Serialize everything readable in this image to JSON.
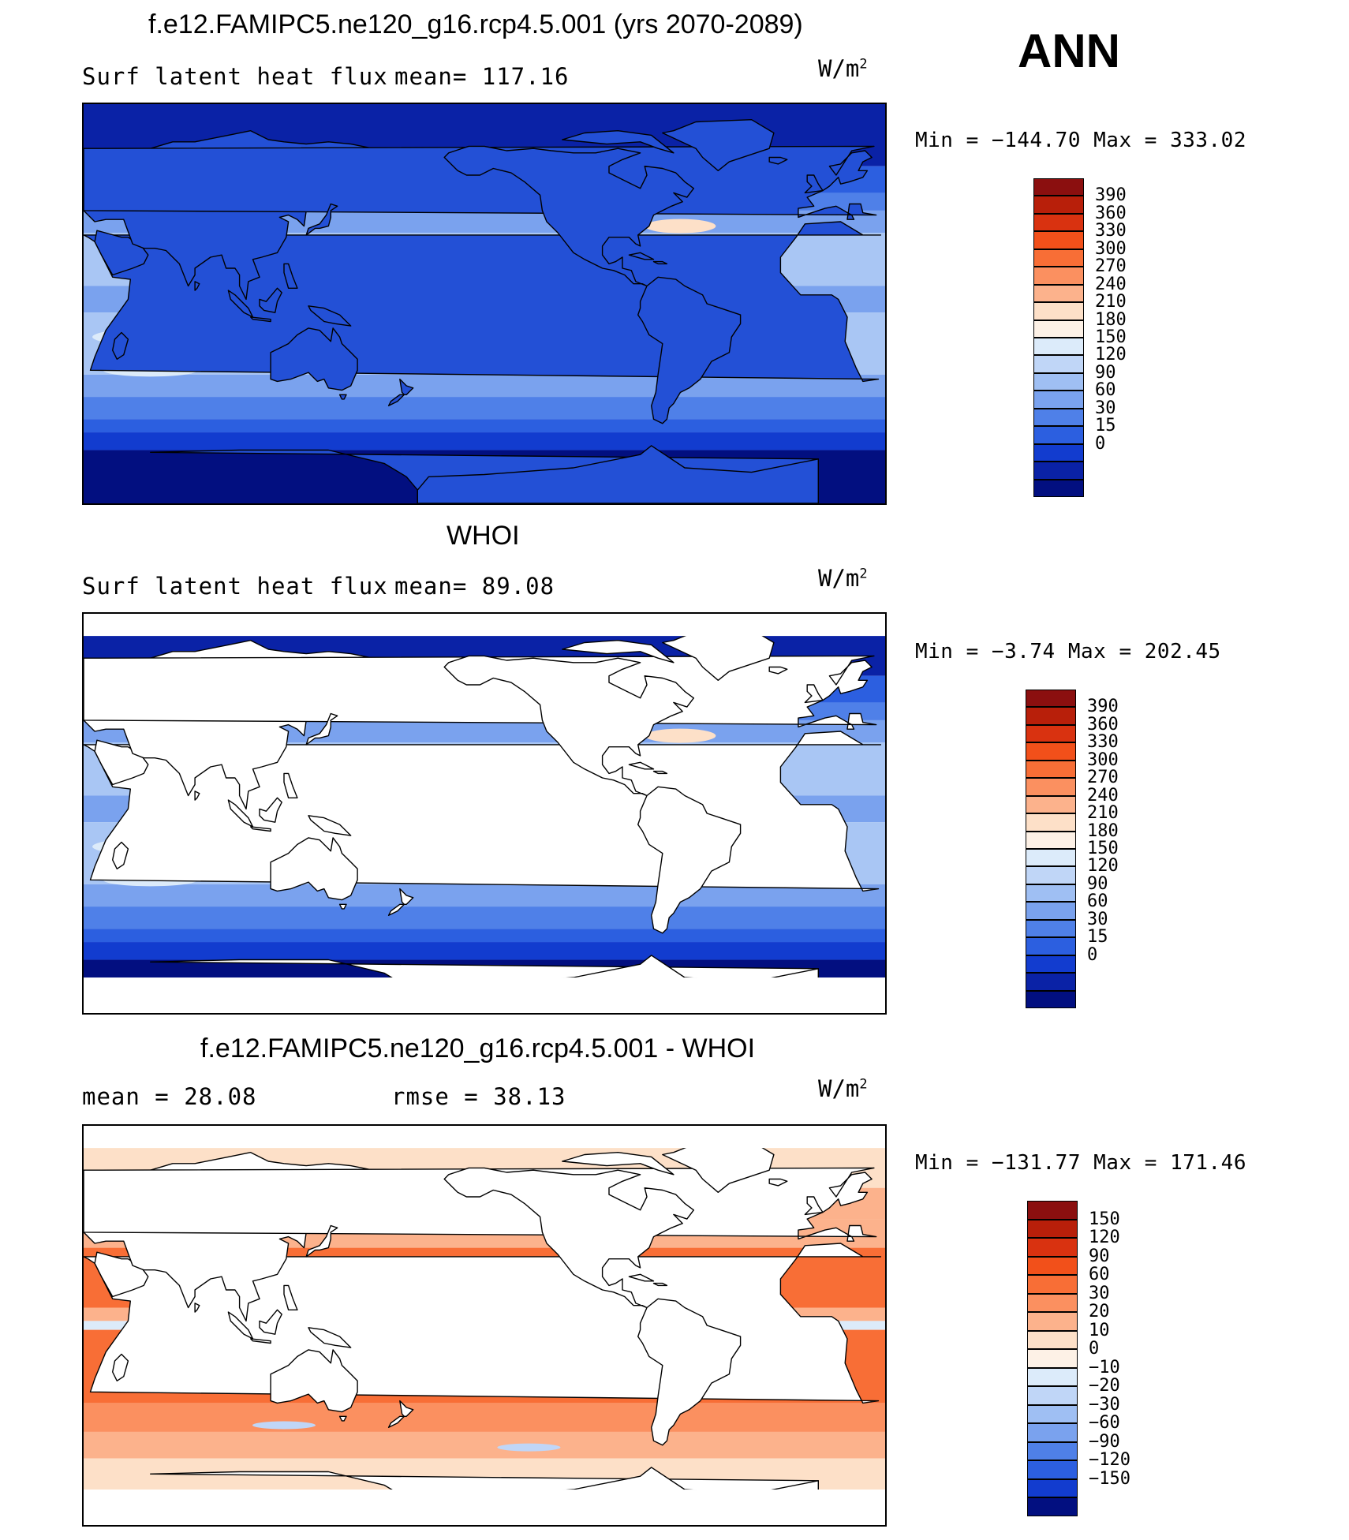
{
  "figure": {
    "season": "ANN"
  },
  "panels": [
    {
      "title": "f.e12.FAMIPC5.ne120_g16.rcp4.5.001 (yrs 2070-2089)",
      "left_label": "Surf latent heat flux",
      "mid_label": "mean=  117.16",
      "unit": "W/m",
      "unit_sup": "2",
      "minmax": "Min = −144.70 Max = 333.02",
      "mask_land": false,
      "palette": "abs"
    },
    {
      "title": "WHOI",
      "left_label": "Surf latent heat flux",
      "mid_label": "mean=   89.08",
      "unit": "W/m",
      "unit_sup": "2",
      "minmax": "Min =   −3.74 Max = 202.45",
      "mask_land": true,
      "palette": "abs"
    },
    {
      "title": "f.e12.FAMIPC5.ne120_g16.rcp4.5.001 - WHOI",
      "left_label": "mean =   28.08",
      "mid_label": "rmse =   38.13",
      "unit": "W/m",
      "unit_sup": "2",
      "minmax": "Min = −131.77 Max = 171.46",
      "mask_land": true,
      "palette": "diff"
    }
  ],
  "colorbars": {
    "abs": {
      "labels": [
        "390",
        "360",
        "330",
        "300",
        "270",
        "240",
        "210",
        "180",
        "150",
        "120",
        "90",
        "60",
        "30",
        "15",
        "0"
      ],
      "colors": [
        "#8b0f0f",
        "#b81f0a",
        "#d93210",
        "#f2501a",
        "#f86e36",
        "#fb9060",
        "#fcb28c",
        "#fde0c8",
        "#fdf1e6",
        "#dcebfa",
        "#c0d6f7",
        "#9fbff3",
        "#7aa2ee",
        "#4f80e8",
        "#2c5fe0",
        "#123ccf",
        "#0a22a6",
        "#020f80"
      ]
    },
    "diff": {
      "labels": [
        "150",
        "120",
        "90",
        "60",
        "30",
        "20",
        "10",
        "0",
        "−10",
        "−20",
        "−30",
        "−60",
        "−90",
        "−120",
        "−150"
      ],
      "colors": [
        "#8b0f0f",
        "#b81f0a",
        "#d93210",
        "#f2501a",
        "#f86e36",
        "#fb9060",
        "#fcb28c",
        "#fde0c8",
        "#fdf1e6",
        "#dcebfa",
        "#c0d6f7",
        "#9fbff3",
        "#7aa2ee",
        "#4f80e8",
        "#2c5fe0",
        "#123ccf",
        "#020f80"
      ]
    }
  }
}
